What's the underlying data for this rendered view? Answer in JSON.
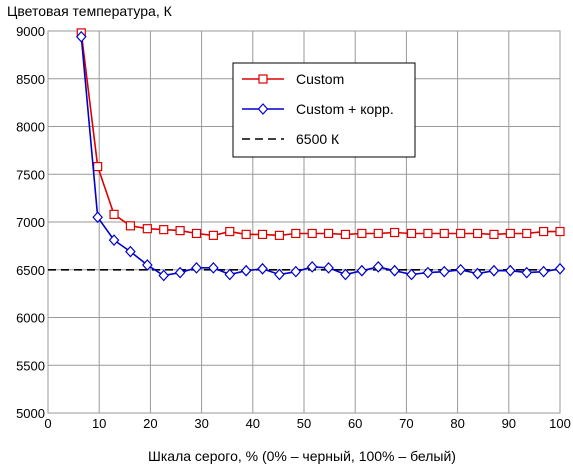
{
  "chart_data": {
    "type": "line",
    "title": "",
    "ylabel": "Цветовая температура, К",
    "xlabel": "Шкала серого, % (0% – черный, 100% – белый)",
    "xlim": [
      0,
      100
    ],
    "ylim": [
      5000,
      9000
    ],
    "xticks": [
      0,
      10,
      20,
      30,
      40,
      50,
      60,
      70,
      80,
      90,
      100
    ],
    "yticks": [
      5000,
      5500,
      6000,
      6500,
      7000,
      7500,
      8000,
      8500,
      9000
    ],
    "grid": true,
    "legend_position": "top-right",
    "series": [
      {
        "name": "Custom",
        "color": "#dd0000",
        "marker": "square",
        "line": "solid",
        "x": [
          6.5,
          9.7,
          12.9,
          16.1,
          19.4,
          22.6,
          25.8,
          29.0,
          32.3,
          35.5,
          38.7,
          41.9,
          45.2,
          48.4,
          51.6,
          54.8,
          58.1,
          61.3,
          64.5,
          67.7,
          71.0,
          74.2,
          77.4,
          80.6,
          83.9,
          87.1,
          90.3,
          93.5,
          96.8,
          100
        ],
        "y": [
          8980,
          7580,
          7080,
          6960,
          6930,
          6920,
          6910,
          6880,
          6860,
          6900,
          6870,
          6870,
          6860,
          6880,
          6880,
          6880,
          6870,
          6880,
          6880,
          6890,
          6880,
          6880,
          6880,
          6880,
          6880,
          6870,
          6880,
          6880,
          6900,
          6900
        ]
      },
      {
        "name": "Custom + корр.",
        "color": "#0000cc",
        "marker": "diamond",
        "line": "solid",
        "x": [
          6.5,
          9.7,
          12.9,
          16.1,
          19.4,
          22.6,
          25.8,
          29.0,
          32.3,
          35.5,
          38.7,
          41.9,
          45.2,
          48.4,
          51.6,
          54.8,
          58.1,
          61.3,
          64.5,
          67.7,
          71.0,
          74.2,
          77.4,
          80.6,
          83.9,
          87.1,
          90.3,
          93.5,
          96.8,
          100
        ],
        "y": [
          8940,
          7050,
          6810,
          6690,
          6550,
          6440,
          6470,
          6520,
          6520,
          6450,
          6490,
          6510,
          6450,
          6480,
          6530,
          6520,
          6450,
          6490,
          6530,
          6490,
          6450,
          6470,
          6480,
          6500,
          6460,
          6490,
          6490,
          6470,
          6480,
          6510
        ]
      },
      {
        "name": "6500 К",
        "color": "#000000",
        "marker": "none",
        "line": "dashed",
        "x": [
          0,
          100
        ],
        "y": [
          6500,
          6500
        ]
      }
    ]
  }
}
